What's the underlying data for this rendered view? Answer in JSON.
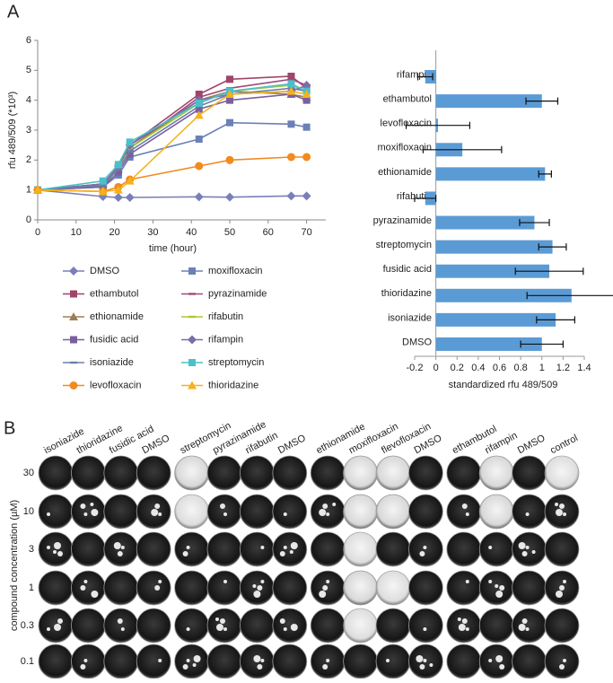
{
  "panel_labels": [
    "A",
    "B"
  ],
  "chart_data": [
    {
      "type": "line",
      "xlabel": "time (hour)",
      "ylabel": "rfu 489/509 (*10³)",
      "x": [
        0,
        17,
        21,
        24,
        42,
        50,
        66,
        70
      ],
      "xlim": [
        0,
        75
      ],
      "xticks": [
        0,
        10,
        20,
        30,
        40,
        50,
        60,
        70
      ],
      "ylim": [
        0,
        6
      ],
      "yticks": [
        0,
        1,
        2,
        3,
        4,
        5,
        6
      ],
      "series": [
        {
          "name": "DMSO",
          "color": "#7b7fb8",
          "marker": "diamond",
          "values": [
            1,
            0.78,
            0.75,
            0.75,
            0.77,
            0.76,
            0.8,
            0.8
          ]
        },
        {
          "name": "moxifloxacin",
          "color": "#6b80b5",
          "marker": "square",
          "values": [
            1,
            1.1,
            1.5,
            2.1,
            2.7,
            3.25,
            3.2,
            3.1
          ]
        },
        {
          "name": "ethambutol",
          "color": "#a0456a",
          "marker": "square",
          "values": [
            1,
            1.2,
            1.8,
            2.5,
            4.2,
            4.7,
            4.8,
            4.4
          ]
        },
        {
          "name": "pyrazinamide",
          "color": "#a04a7a",
          "marker": "dash",
          "values": [
            1,
            1.2,
            1.7,
            2.4,
            4.1,
            4.4,
            4.7,
            4.5
          ]
        },
        {
          "name": "ethionamide",
          "color": "#9c8055",
          "marker": "triangle",
          "values": [
            1,
            1.2,
            1.7,
            2.4,
            4.0,
            4.3,
            4.2,
            4.1
          ]
        },
        {
          "name": "rifabutin",
          "color": "#a8c832",
          "marker": "dash",
          "values": [
            1,
            1.15,
            1.7,
            2.4,
            3.9,
            4.3,
            4.5,
            4.3
          ]
        },
        {
          "name": "fusidic acid",
          "color": "#7a5fa0",
          "marker": "square",
          "values": [
            1,
            1.1,
            1.6,
            2.2,
            3.7,
            4.0,
            4.2,
            4.0
          ]
        },
        {
          "name": "rifampin",
          "color": "#7b6ea8",
          "marker": "diamond",
          "values": [
            1,
            1.2,
            1.8,
            2.5,
            4.0,
            4.2,
            4.3,
            4.5
          ]
        },
        {
          "name": "isoniazide",
          "color": "#6c7fa8",
          "marker": "dash",
          "values": [
            1,
            1.15,
            1.7,
            2.3,
            3.8,
            4.2,
            4.4,
            4.3
          ]
        },
        {
          "name": "streptomycin",
          "color": "#4bc0c8",
          "marker": "square",
          "values": [
            1,
            1.3,
            1.85,
            2.6,
            3.9,
            4.3,
            4.55,
            4.3
          ]
        },
        {
          "name": "levofloxacin",
          "color": "#f28a1e",
          "marker": "circle",
          "values": [
            1,
            0.95,
            1.1,
            1.35,
            1.8,
            2.0,
            2.1,
            2.1
          ]
        },
        {
          "name": "thioridazine",
          "color": "#f5b21c",
          "marker": "triangle",
          "values": [
            1,
            0.95,
            1.0,
            1.3,
            3.5,
            4.2,
            4.3,
            4.2
          ]
        }
      ]
    },
    {
      "type": "bar",
      "orientation": "horizontal",
      "xlabel": "standardized rfu 489/509",
      "color": "#5b9bd5",
      "categories": [
        "rifampin",
        "ethambutol",
        "levofloxacin",
        "moxifloxacin",
        "ethionamide",
        "rifabutin",
        "pyrazinamide",
        "streptomycin",
        "fusidic acid",
        "thioridazine",
        "isoniazide",
        "DMSO"
      ],
      "values": [
        -0.1,
        1.0,
        0.02,
        0.25,
        1.03,
        -0.1,
        0.93,
        1.1,
        1.07,
        1.28,
        1.13,
        1.0
      ],
      "errors": [
        0.07,
        0.15,
        0.3,
        0.37,
        0.06,
        0.1,
        0.14,
        0.13,
        0.32,
        0.42,
        0.18,
        0.2
      ],
      "xlim": [
        -0.2,
        1.4
      ],
      "xticks": [
        -0.2,
        0,
        0.2,
        0.4,
        0.6,
        0.8,
        1,
        1.2,
        1.4
      ]
    }
  ],
  "plates": {
    "ylabel": "compound concentration (µM)",
    "columns": [
      "isoniazide",
      "thioridazine",
      "fusidic acid",
      "DMSO",
      "streptomycin",
      "pyrazinamide",
      "rifabutin",
      "DMSO",
      "ethionamide",
      "moxifloxacin",
      "flevofloxacin",
      "DMSO",
      "ethambutol",
      "rifampin",
      "DMSO",
      "control"
    ],
    "rows": [
      "30",
      "10",
      "3",
      "1",
      "0.3",
      "0.1"
    ]
  }
}
